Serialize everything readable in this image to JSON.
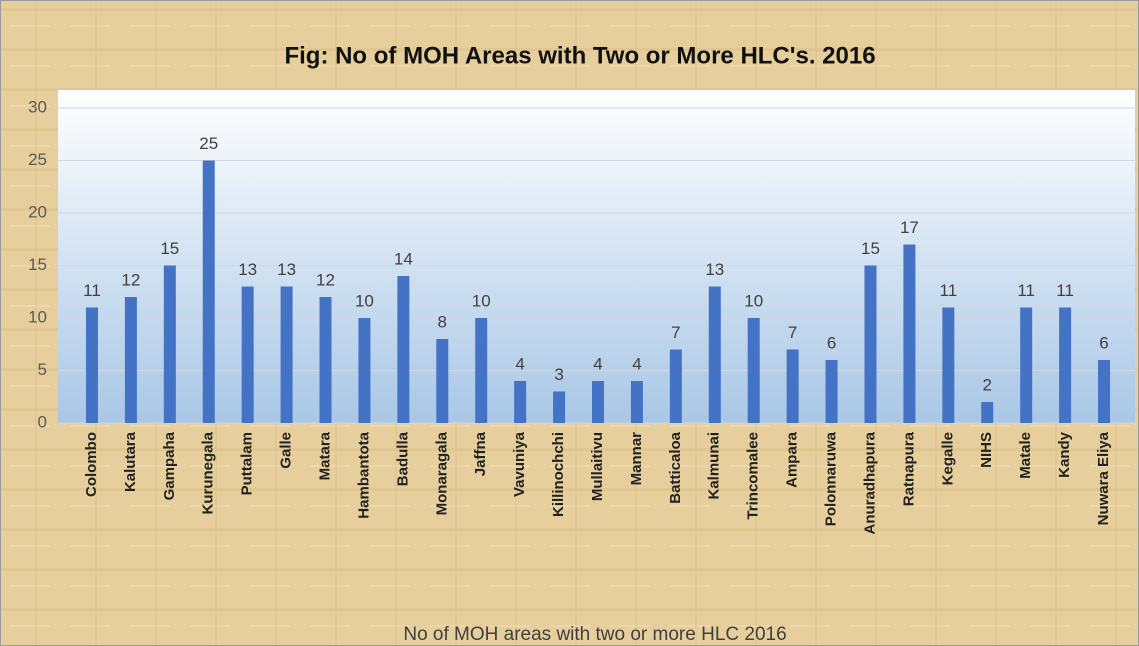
{
  "chart_data": {
    "type": "bar",
    "title": "Fig: No of MOH Areas with Two or More HLC's. 2016",
    "x_label": "No of MOH areas with two or more HLC 2016",
    "categories": [
      "Colombo",
      "Kalutara",
      "Gampaha",
      "Kurunegala",
      "Puttalam",
      "Galle",
      "Matara",
      "Hambantota",
      "Badulla",
      "Monaragala",
      "Jaffna",
      "Vavuniya",
      "Killinochchi",
      "Mullaitivu",
      "Mannar",
      "Batticaloa",
      "Kalmunai",
      "Trincomalee",
      "Ampara",
      "Polonnaruwa",
      "Anuradhapura",
      "Ratnapura",
      "Kegalle",
      "NIHS",
      "Matale",
      "Kandy",
      "Nuwara Eliya"
    ],
    "values": [
      11,
      12,
      15,
      25,
      13,
      13,
      12,
      10,
      14,
      8,
      10,
      4,
      3,
      4,
      4,
      7,
      13,
      10,
      7,
      6,
      15,
      17,
      11,
      2,
      11,
      11,
      6
    ],
    "color": "#4472c4",
    "ylim": [
      0,
      30
    ],
    "yticks": [
      0,
      5,
      10,
      15,
      20,
      25,
      30
    ],
    "grid": true
  }
}
